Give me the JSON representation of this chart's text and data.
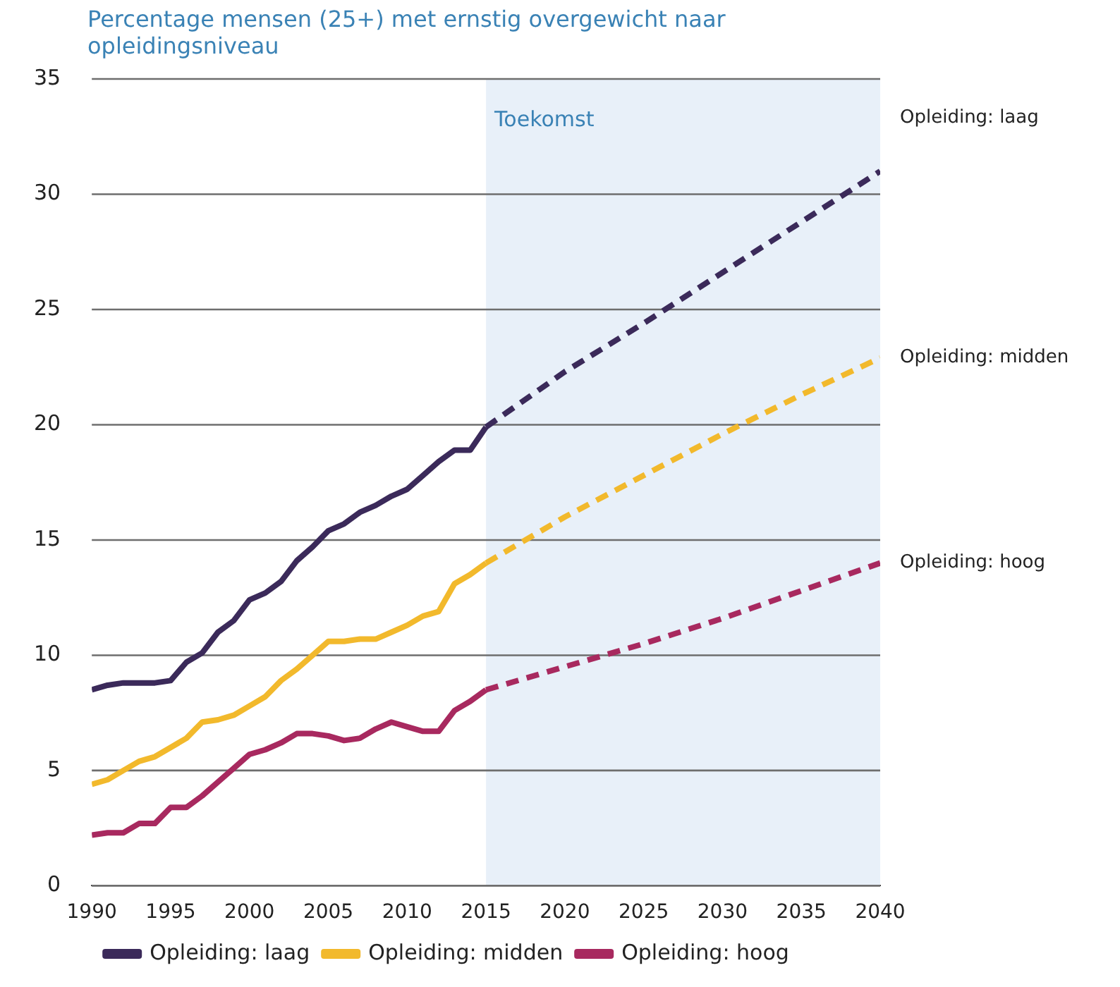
{
  "chart_data": {
    "type": "line",
    "title": "Percentage mensen (25+) met ernstig overgewicht naar opleidingsniveau",
    "x": [
      1990,
      1991,
      1992,
      1993,
      1994,
      1995,
      1996,
      1997,
      1998,
      1999,
      2000,
      2001,
      2002,
      2003,
      2004,
      2005,
      2006,
      2007,
      2008,
      2009,
      2010,
      2011,
      2012,
      2013,
      2014,
      2015
    ],
    "series": [
      {
        "name": "Opleiding: laag",
        "color": "#3b2a5a",
        "line_style": "solid",
        "values": [
          8.5,
          8.7,
          8.8,
          8.8,
          8.8,
          8.9,
          9.7,
          10.1,
          11.0,
          11.5,
          12.4,
          12.7,
          13.2,
          14.1,
          14.7,
          15.4,
          15.7,
          16.2,
          16.5,
          16.9,
          17.2,
          17.8,
          18.4,
          18.9,
          18.9,
          19.9
        ]
      },
      {
        "name": "Opleiding: midden",
        "color": "#f2b92c",
        "line_style": "solid",
        "values": [
          4.4,
          4.6,
          5.0,
          5.4,
          5.6,
          6.0,
          6.4,
          7.1,
          7.2,
          7.4,
          7.8,
          8.2,
          8.9,
          9.4,
          10.0,
          10.6,
          10.6,
          10.7,
          10.7,
          11.0,
          11.3,
          11.7,
          11.9,
          13.1,
          13.5,
          14.0
        ]
      },
      {
        "name": "Opleiding: hoog",
        "color": "#a8295f",
        "line_style": "solid",
        "values": [
          2.2,
          2.3,
          2.3,
          2.7,
          2.7,
          3.4,
          3.4,
          3.9,
          4.5,
          5.1,
          5.7,
          5.9,
          6.2,
          6.6,
          6.6,
          6.5,
          6.3,
          6.4,
          6.8,
          7.1,
          6.9,
          6.7,
          6.7,
          7.6,
          8.0,
          8.5
        ]
      },
      {
        "color": "#3b2a5a",
        "line_style": "dashed",
        "x": [
          2015,
          2020,
          2025,
          2030,
          2035,
          2040
        ],
        "values": [
          19.9,
          22.3,
          24.4,
          26.6,
          28.8,
          31.0
        ]
      },
      {
        "color": "#f2b92c",
        "line_style": "dashed",
        "x": [
          2015,
          2020,
          2025,
          2030,
          2035,
          2040
        ],
        "values": [
          14.0,
          16.0,
          17.8,
          19.6,
          21.3,
          22.9
        ]
      },
      {
        "color": "#a8295f",
        "line_style": "dashed",
        "x": [
          2015,
          2020,
          2025,
          2030,
          2035,
          2040
        ],
        "values": [
          8.5,
          9.5,
          10.5,
          11.6,
          12.8,
          14.0
        ]
      }
    ],
    "xlim": [
      1990,
      2040
    ],
    "xticks": [
      1990,
      1995,
      2000,
      2005,
      2010,
      2015,
      2020,
      2025,
      2030,
      2035,
      2040
    ],
    "ylim": [
      0,
      35
    ],
    "yticks": [
      0,
      5,
      10,
      15,
      20,
      25,
      30,
      35
    ],
    "grid": "y",
    "legend": "bottom",
    "marker": "none",
    "bands": [
      {
        "axis": "x",
        "from": 2015,
        "to": 2040,
        "label": "Toekomst",
        "color": "#e8f0f9"
      }
    ],
    "annotations": [
      "Opleiding: laag",
      "Opleiding: midden",
      "Opleiding: hoog"
    ]
  }
}
